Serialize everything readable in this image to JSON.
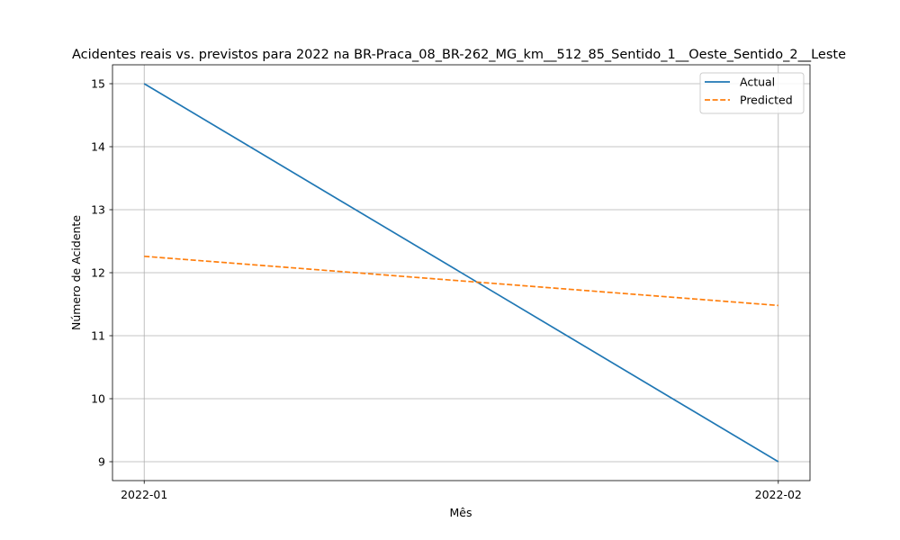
{
  "chart_data": {
    "type": "line",
    "title": "Acidentes reais vs. previstos para 2022 na BR-Praca_08_BR-262_MG_km__512_85_Sentido_1__Oeste_Sentido_2__Leste",
    "xlabel": "Mês",
    "ylabel": "Número de Acidente",
    "categories": [
      "2022-01",
      "2022-02"
    ],
    "xlim": [
      -0.05,
      1.05
    ],
    "ylim": [
      8.7,
      15.3
    ],
    "yticks": [
      9,
      10,
      11,
      12,
      13,
      14,
      15
    ],
    "grid": true,
    "legend_position": "top-right",
    "series": [
      {
        "name": "Actual",
        "values": [
          15,
          9
        ],
        "color": "#1f77b4",
        "dash": "solid"
      },
      {
        "name": "Predicted",
        "values": [
          12.26,
          11.48
        ],
        "color": "#ff7f0e",
        "dash": "dashed"
      }
    ]
  }
}
